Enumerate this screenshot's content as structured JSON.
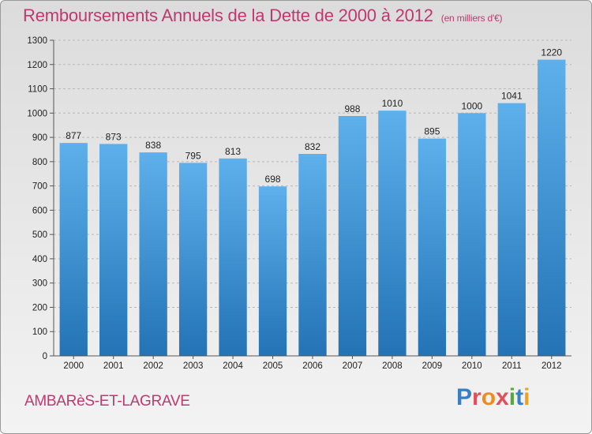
{
  "header": {
    "title": "Remboursements Annuels de la Dette de 2000 à 2012",
    "unit": "(en milliers d'€)"
  },
  "footer": {
    "commune": "AMBARèS-ET-LAGRAVE",
    "logo": "Proxiti"
  },
  "colors": {
    "title": "#c0386f",
    "bar_top": "#5eb0ec",
    "bar_bottom": "#2373b5"
  },
  "chart_data": {
    "type": "bar",
    "title": "Remboursements Annuels de la Dette de 2000 à 2012",
    "categories": [
      "2000",
      "2001",
      "2002",
      "2003",
      "2004",
      "2005",
      "2006",
      "2007",
      "2008",
      "2009",
      "2010",
      "2011",
      "2012"
    ],
    "values": [
      877,
      873,
      838,
      795,
      813,
      698,
      832,
      988,
      1010,
      895,
      1000,
      1041,
      1220
    ],
    "ylim": [
      0,
      1300
    ],
    "yticks": [
      0,
      100,
      200,
      300,
      400,
      500,
      600,
      700,
      800,
      900,
      1000,
      1100,
      1200,
      1300
    ],
    "grid": true
  }
}
